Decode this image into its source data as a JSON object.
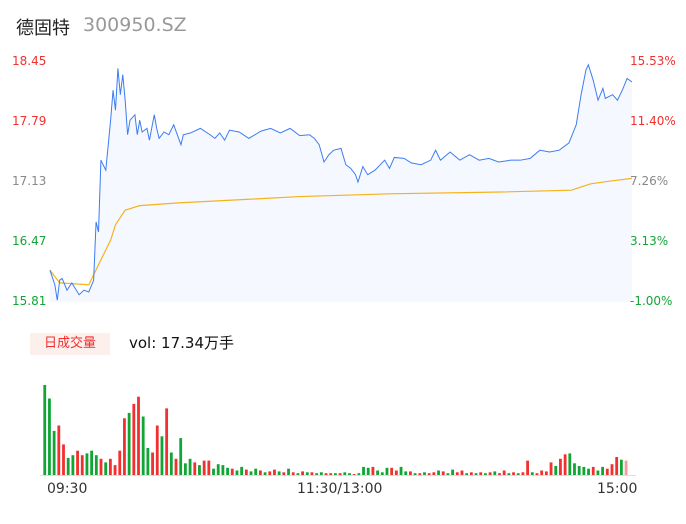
{
  "header": {
    "name": "德固特",
    "code": "300950.SZ"
  },
  "volume_badge": "日成交量",
  "volume_text": "vol: 17.34万手",
  "colors": {
    "up": "#f23030",
    "down": "#12a536",
    "flat": "#888888",
    "price_line": "#3d7cf2",
    "avg_line": "#f5b21b",
    "fill": "#f5f8fe"
  },
  "chart_data": {
    "type": "line",
    "y_left_ticks": [
      "18.45",
      "17.79",
      "17.13",
      "16.47",
      "15.81"
    ],
    "y_right_ticks": [
      "15.53%",
      "11.40%",
      "7.26%",
      "3.13%",
      "-1.00%"
    ],
    "ylim": [
      15.81,
      18.45
    ],
    "x_ticks": [
      "09:30",
      "11:30/13:00",
      "15:00"
    ],
    "price": [
      [
        "09:30",
        16.16
      ],
      [
        "09:32",
        16.0
      ],
      [
        "09:33",
        15.83
      ],
      [
        "09:34",
        16.05
      ],
      [
        "09:35",
        16.07
      ],
      [
        "09:37",
        15.94
      ],
      [
        "09:39",
        16.02
      ],
      [
        "09:42",
        15.89
      ],
      [
        "09:44",
        15.94
      ],
      [
        "09:46",
        15.92
      ],
      [
        "09:48",
        16.05
      ],
      [
        "09:49",
        16.69
      ],
      [
        "09:50",
        16.58
      ],
      [
        "09:51",
        17.37
      ],
      [
        "09:53",
        17.26
      ],
      [
        "09:55",
        17.81
      ],
      [
        "09:56",
        18.14
      ],
      [
        "09:57",
        17.92
      ],
      [
        "09:58",
        18.38
      ],
      [
        "09:59",
        18.09
      ],
      [
        "10:00",
        18.31
      ],
      [
        "10:01",
        18.03
      ],
      [
        "10:02",
        17.65
      ],
      [
        "10:03",
        17.81
      ],
      [
        "10:05",
        17.87
      ],
      [
        "10:06",
        17.65
      ],
      [
        "10:07",
        17.81
      ],
      [
        "10:08",
        17.68
      ],
      [
        "10:10",
        17.72
      ],
      [
        "10:11",
        17.59
      ],
      [
        "10:13",
        17.87
      ],
      [
        "10:14",
        17.72
      ],
      [
        "10:15",
        17.61
      ],
      [
        "10:17",
        17.68
      ],
      [
        "10:19",
        17.65
      ],
      [
        "10:21",
        17.76
      ],
      [
        "10:24",
        17.54
      ],
      [
        "10:25",
        17.65
      ],
      [
        "10:28",
        17.67
      ],
      [
        "10:32",
        17.72
      ],
      [
        "10:36",
        17.65
      ],
      [
        "10:38",
        17.61
      ],
      [
        "10:40",
        17.67
      ],
      [
        "10:42",
        17.59
      ],
      [
        "10:44",
        17.7
      ],
      [
        "10:48",
        17.68
      ],
      [
        "10:52",
        17.61
      ],
      [
        "10:57",
        17.69
      ],
      [
        "11:01",
        17.72
      ],
      [
        "11:05",
        17.67
      ],
      [
        "11:09",
        17.72
      ],
      [
        "11:13",
        17.64
      ],
      [
        "11:17",
        17.65
      ],
      [
        "11:19",
        17.61
      ],
      [
        "11:21",
        17.54
      ],
      [
        "11:23",
        17.35
      ],
      [
        "11:25",
        17.43
      ],
      [
        "11:27",
        17.48
      ],
      [
        "11:30",
        17.5
      ],
      [
        "13:02",
        17.32
      ],
      [
        "13:04",
        17.28
      ],
      [
        "13:06",
        17.21
      ],
      [
        "13:07",
        17.13
      ],
      [
        "13:09",
        17.3
      ],
      [
        "13:11",
        17.21
      ],
      [
        "13:14",
        17.26
      ],
      [
        "13:18",
        17.37
      ],
      [
        "13:20",
        17.28
      ],
      [
        "13:22",
        17.4
      ],
      [
        "13:26",
        17.39
      ],
      [
        "13:29",
        17.34
      ],
      [
        "13:33",
        17.32
      ],
      [
        "13:37",
        17.37
      ],
      [
        "13:39",
        17.48
      ],
      [
        "13:41",
        17.37
      ],
      [
        "13:45",
        17.46
      ],
      [
        "13:49",
        17.37
      ],
      [
        "13:53",
        17.43
      ],
      [
        "13:57",
        17.37
      ],
      [
        "14:01",
        17.39
      ],
      [
        "14:05",
        17.35
      ],
      [
        "14:10",
        17.37
      ],
      [
        "14:14",
        17.37
      ],
      [
        "14:18",
        17.39
      ],
      [
        "14:22",
        17.48
      ],
      [
        "14:26",
        17.46
      ],
      [
        "14:30",
        17.48
      ],
      [
        "14:34",
        17.56
      ],
      [
        "14:37",
        17.76
      ],
      [
        "14:39",
        18.09
      ],
      [
        "14:41",
        18.36
      ],
      [
        "14:42",
        18.42
      ],
      [
        "14:44",
        18.25
      ],
      [
        "14:46",
        18.03
      ],
      [
        "14:48",
        18.16
      ],
      [
        "14:49",
        18.05
      ],
      [
        "14:52",
        18.09
      ],
      [
        "14:54",
        18.03
      ],
      [
        "14:56",
        18.14
      ],
      [
        "14:58",
        18.27
      ],
      [
        "15:00",
        18.23
      ]
    ],
    "avg": [
      [
        "09:30",
        16.16
      ],
      [
        "09:34",
        16.02
      ],
      [
        "09:46",
        16.0
      ],
      [
        "09:50",
        16.22
      ],
      [
        "09:55",
        16.49
      ],
      [
        "09:57",
        16.66
      ],
      [
        "10:01",
        16.82
      ],
      [
        "10:07",
        16.87
      ],
      [
        "10:23",
        16.9
      ],
      [
        "10:52",
        16.94
      ],
      [
        "11:13",
        16.97
      ],
      [
        "13:20",
        17.0
      ],
      [
        "14:06",
        17.02
      ],
      [
        "14:35",
        17.04
      ],
      [
        "14:43",
        17.11
      ],
      [
        "14:51",
        17.14
      ],
      [
        "15:00",
        17.17
      ]
    ],
    "volume_relative": [
      [
        100,
        "d"
      ],
      [
        85,
        "d"
      ],
      [
        49,
        "d"
      ],
      [
        55,
        "u"
      ],
      [
        34,
        "u"
      ],
      [
        19,
        "d"
      ],
      [
        22,
        "d"
      ],
      [
        27,
        "u"
      ],
      [
        22,
        "u"
      ],
      [
        24,
        "d"
      ],
      [
        27,
        "d"
      ],
      [
        22,
        "d"
      ],
      [
        18,
        "u"
      ],
      [
        14,
        "d"
      ],
      [
        18,
        "u"
      ],
      [
        11,
        "u"
      ],
      [
        27,
        "u"
      ],
      [
        63,
        "u"
      ],
      [
        69,
        "d"
      ],
      [
        79,
        "u"
      ],
      [
        87,
        "u"
      ],
      [
        65,
        "d"
      ],
      [
        30,
        "d"
      ],
      [
        25,
        "u"
      ],
      [
        55,
        "u"
      ],
      [
        43,
        "d"
      ],
      [
        74,
        "u"
      ],
      [
        25,
        "d"
      ],
      [
        18,
        "u"
      ],
      [
        41,
        "d"
      ],
      [
        13,
        "d"
      ],
      [
        18,
        "d"
      ],
      [
        14,
        "u"
      ],
      [
        11,
        "d"
      ],
      [
        16,
        "u"
      ],
      [
        16,
        "u"
      ],
      [
        7,
        "d"
      ],
      [
        12,
        "d"
      ],
      [
        11,
        "d"
      ],
      [
        8,
        "d"
      ],
      [
        7,
        "u"
      ],
      [
        5,
        "d"
      ],
      [
        9,
        "d"
      ],
      [
        6,
        "u"
      ],
      [
        4,
        "d"
      ],
      [
        7,
        "d"
      ],
      [
        5,
        "u"
      ],
      [
        3,
        "d"
      ],
      [
        4,
        "u"
      ],
      [
        6,
        "u"
      ],
      [
        4,
        "d"
      ],
      [
        3,
        "u"
      ],
      [
        7,
        "d"
      ],
      [
        3,
        "u"
      ],
      [
        2,
        "d"
      ],
      [
        4,
        "u"
      ],
      [
        3,
        "d"
      ],
      [
        3,
        "u"
      ],
      [
        2,
        "d"
      ],
      [
        3,
        "d"
      ],
      [
        2,
        "u"
      ],
      [
        2,
        "u"
      ],
      [
        2,
        "d"
      ],
      [
        2,
        "u"
      ],
      [
        3,
        "d"
      ],
      [
        2,
        "d"
      ],
      [
        1,
        "u"
      ],
      [
        2,
        "d"
      ],
      [
        9,
        "d"
      ],
      [
        8,
        "d"
      ],
      [
        9,
        "u"
      ],
      [
        5,
        "d"
      ],
      [
        3,
        "d"
      ],
      [
        8,
        "d"
      ],
      [
        8,
        "u"
      ],
      [
        5,
        "u"
      ],
      [
        9,
        "d"
      ],
      [
        4,
        "d"
      ],
      [
        4,
        "u"
      ],
      [
        2,
        "d"
      ],
      [
        2,
        "u"
      ],
      [
        3,
        "d"
      ],
      [
        2,
        "u"
      ],
      [
        3,
        "u"
      ],
      [
        5,
        "d"
      ],
      [
        4,
        "u"
      ],
      [
        2,
        "d"
      ],
      [
        6,
        "d"
      ],
      [
        3,
        "u"
      ],
      [
        5,
        "u"
      ],
      [
        2,
        "d"
      ],
      [
        3,
        "u"
      ],
      [
        2,
        "d"
      ],
      [
        3,
        "u"
      ],
      [
        2,
        "d"
      ],
      [
        3,
        "u"
      ],
      [
        4,
        "d"
      ],
      [
        2,
        "u"
      ],
      [
        5,
        "u"
      ],
      [
        2,
        "d"
      ],
      [
        3,
        "u"
      ],
      [
        2,
        "d"
      ],
      [
        3,
        "u"
      ],
      [
        16,
        "u"
      ],
      [
        3,
        "d"
      ],
      [
        2,
        "u"
      ],
      [
        5,
        "u"
      ],
      [
        4,
        "u"
      ],
      [
        14,
        "u"
      ],
      [
        10,
        "d"
      ],
      [
        18,
        "u"
      ],
      [
        23,
        "u"
      ],
      [
        24,
        "d"
      ],
      [
        13,
        "d"
      ],
      [
        10,
        "d"
      ],
      [
        9,
        "d"
      ],
      [
        7,
        "d"
      ],
      [
        9,
        "u"
      ],
      [
        5,
        "d"
      ],
      [
        9,
        "d"
      ],
      [
        7,
        "u"
      ],
      [
        12,
        "u"
      ],
      [
        20,
        "u"
      ],
      [
        17,
        "d"
      ],
      [
        16,
        "f"
      ]
    ]
  }
}
